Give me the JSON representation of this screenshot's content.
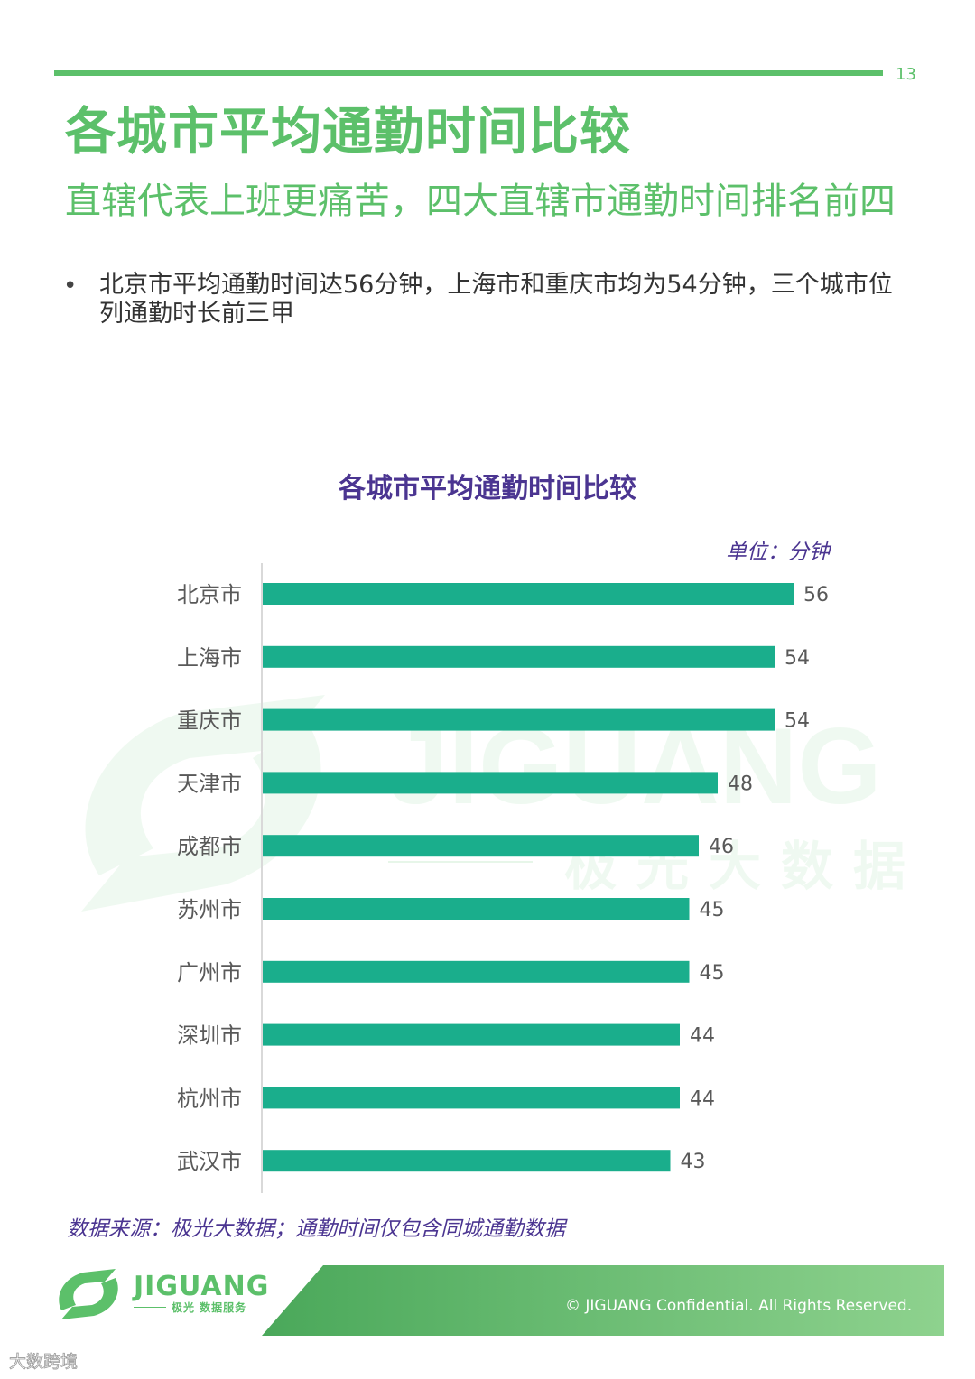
{
  "header": {
    "page_number": "13",
    "title": "各城市平均通勤时间比较",
    "subtitle": "直辖代表上班更痛苦，四大直辖市通勤时间排名前四",
    "bullet": "北京市平均通勤时间达56分钟，上海市和重庆市均为54分钟，三个城市位列通勤时长前三甲"
  },
  "watermark": {
    "text": "JIGUANG",
    "cn_text": "极光大数据"
  },
  "chart_data": {
    "type": "bar",
    "orientation": "horizontal",
    "title": "各城市平均通勤时间比较",
    "unit_label": "单位：分钟",
    "categories": [
      "北京市",
      "上海市",
      "重庆市",
      "天津市",
      "成都市",
      "苏州市",
      "广州市",
      "深圳市",
      "杭州市",
      "武汉市"
    ],
    "values": [
      56,
      54,
      54,
      48,
      46,
      45,
      45,
      44,
      44,
      43
    ],
    "bar_color": "#1aae8c",
    "grid": false,
    "data_labels": true
  },
  "source_note": "数据来源：极光大数据；通勤时间仅包含同城通勤数据",
  "footer": {
    "logo_text": "JIGUANG",
    "logo_subtext": "极光 数据服务",
    "copyright": "© JIGUANG Confidential. All Rights Reserved.",
    "corner_mark": "大数跨境"
  },
  "colors": {
    "brand_green": "#5cc06a",
    "title_purple": "#4b3591",
    "bar_teal": "#1aae8c"
  }
}
